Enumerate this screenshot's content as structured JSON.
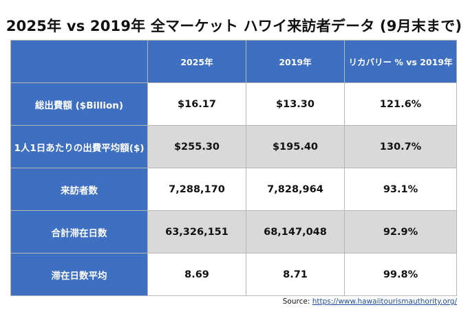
{
  "title": "2025年 vs 2019年 全マーケット ハワイ来訪者データ (9月末まで)",
  "table": {
    "headers": [
      "",
      "2025年",
      "2019年",
      "リカバリー % vs 2019年"
    ],
    "rows": [
      {
        "label": "総出費額 ($Billion)",
        "v2025": "$16.17",
        "v2019": "$13.30",
        "recovery": "121.6%"
      },
      {
        "label": "1人1日あたりの出費平均額($)",
        "v2025": "$255.30",
        "v2019": "$195.40",
        "recovery": "130.7%"
      },
      {
        "label": "来訪者数",
        "v2025": "7,288,170",
        "v2019": "7,828,964",
        "recovery": "93.1%"
      },
      {
        "label": "合計滞在日数",
        "v2025": "63,326,151",
        "v2019": "68,147,048",
        "recovery": "92.9%"
      },
      {
        "label": "滞在日数平均",
        "v2025": "8.69",
        "v2019": "8.71",
        "recovery": "99.8%"
      }
    ]
  },
  "source": {
    "prefix": "Source: ",
    "link_text": "https://www.hawaiitourismauthority.org/"
  },
  "colors": {
    "header_blue": "#3e6fc0",
    "row_shade": "#d9d9d9",
    "link": "#1f4e9c"
  }
}
